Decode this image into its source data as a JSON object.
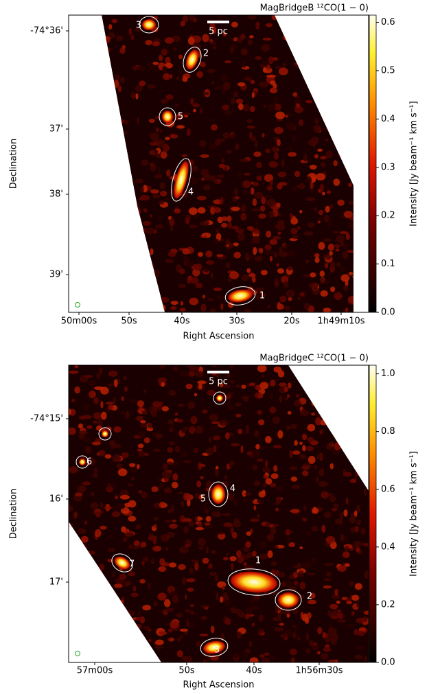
{
  "chart_data": [
    {
      "type": "image",
      "title": "MagBridgeB ¹²CO(1 − 0)",
      "xlabel": "Right Ascension",
      "ylabel": "Declination",
      "xtick_labels": [
        "50m00s",
        "50s",
        "40s",
        "30s",
        "20s",
        "1h49m10s"
      ],
      "ytick_labels": [
        "-74°36'",
        "37'",
        "38'",
        "39'"
      ],
      "scale_bar": "5 pc",
      "sources": [
        "3",
        "2",
        "5",
        "4",
        "1"
      ],
      "colorbar": {
        "label": "Intensity [Jy beam⁻¹ km s⁻¹]",
        "lim": [
          0,
          0.615
        ],
        "ticks": [
          {
            "value": 0,
            "label": "0.0"
          },
          0.1,
          0.2,
          0.3,
          0.4,
          0.5,
          0.6
        ]
      }
    },
    {
      "type": "image",
      "title": "MagBridgeC ¹²CO(1 − 0)",
      "xlabel": "Right Ascension",
      "ylabel": "Declination",
      "xtick_labels": [
        "57m00s",
        "50s",
        "40s",
        "1h56m30s"
      ],
      "ytick_labels": [
        "-74°15'",
        "16'",
        "17'"
      ],
      "scale_bar": "5 pc",
      "sources": [
        "6",
        "4",
        "5",
        "7",
        "1",
        "2",
        "3"
      ],
      "colorbar": {
        "label": "Intensity [Jy beam⁻¹ km s⁻¹]",
        "lim": [
          0,
          1.03
        ],
        "ticks": [
          {
            "value": 0,
            "label": "0.0"
          },
          0.2,
          0.4,
          0.6,
          0.8,
          {
            "value": 1,
            "label": "1.0"
          }
        ]
      }
    }
  ]
}
